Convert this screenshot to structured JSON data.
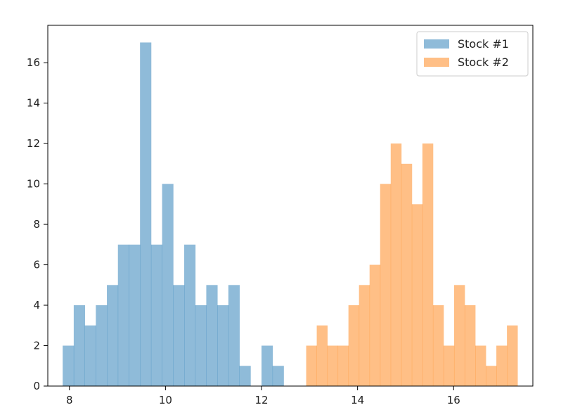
{
  "chart_data": {
    "type": "bar",
    "title": "",
    "xlabel": "",
    "ylabel": "",
    "xlim": [
      7.55,
      17.65
    ],
    "ylim": [
      0,
      17.85
    ],
    "xticks": [
      8,
      10,
      12,
      14,
      16
    ],
    "yticks": [
      0,
      2,
      4,
      6,
      8,
      10,
      12,
      14,
      16
    ],
    "grid": false,
    "legend_position": "top-right",
    "series": [
      {
        "name": "Stock #1",
        "color": "#1f77b4",
        "opacity": 0.5,
        "bin_edges": [
          7.86,
          8.09,
          8.32,
          8.55,
          8.78,
          9.01,
          9.24,
          9.47,
          9.7,
          9.93,
          10.16,
          10.39,
          10.62,
          10.85,
          11.08,
          11.31,
          11.54,
          11.77,
          12.0,
          12.23,
          12.46
        ],
        "counts": [
          2,
          4,
          3,
          4,
          5,
          7,
          7,
          17,
          7,
          10,
          5,
          7,
          4,
          5,
          4,
          5,
          1,
          0,
          2,
          1
        ]
      },
      {
        "name": "Stock #2",
        "color": "#ff7f0e",
        "opacity": 0.5,
        "bin_edges": [
          12.93,
          13.15,
          13.37,
          13.59,
          13.81,
          14.03,
          14.25,
          14.47,
          14.69,
          14.91,
          15.13,
          15.35,
          15.57,
          15.79,
          16.01,
          16.23,
          16.45,
          16.67,
          16.89,
          17.11,
          17.33
        ],
        "counts": [
          2,
          3,
          2,
          2,
          4,
          5,
          6,
          10,
          12,
          11,
          9,
          12,
          4,
          2,
          5,
          4,
          2,
          1,
          2,
          3
        ]
      }
    ]
  }
}
